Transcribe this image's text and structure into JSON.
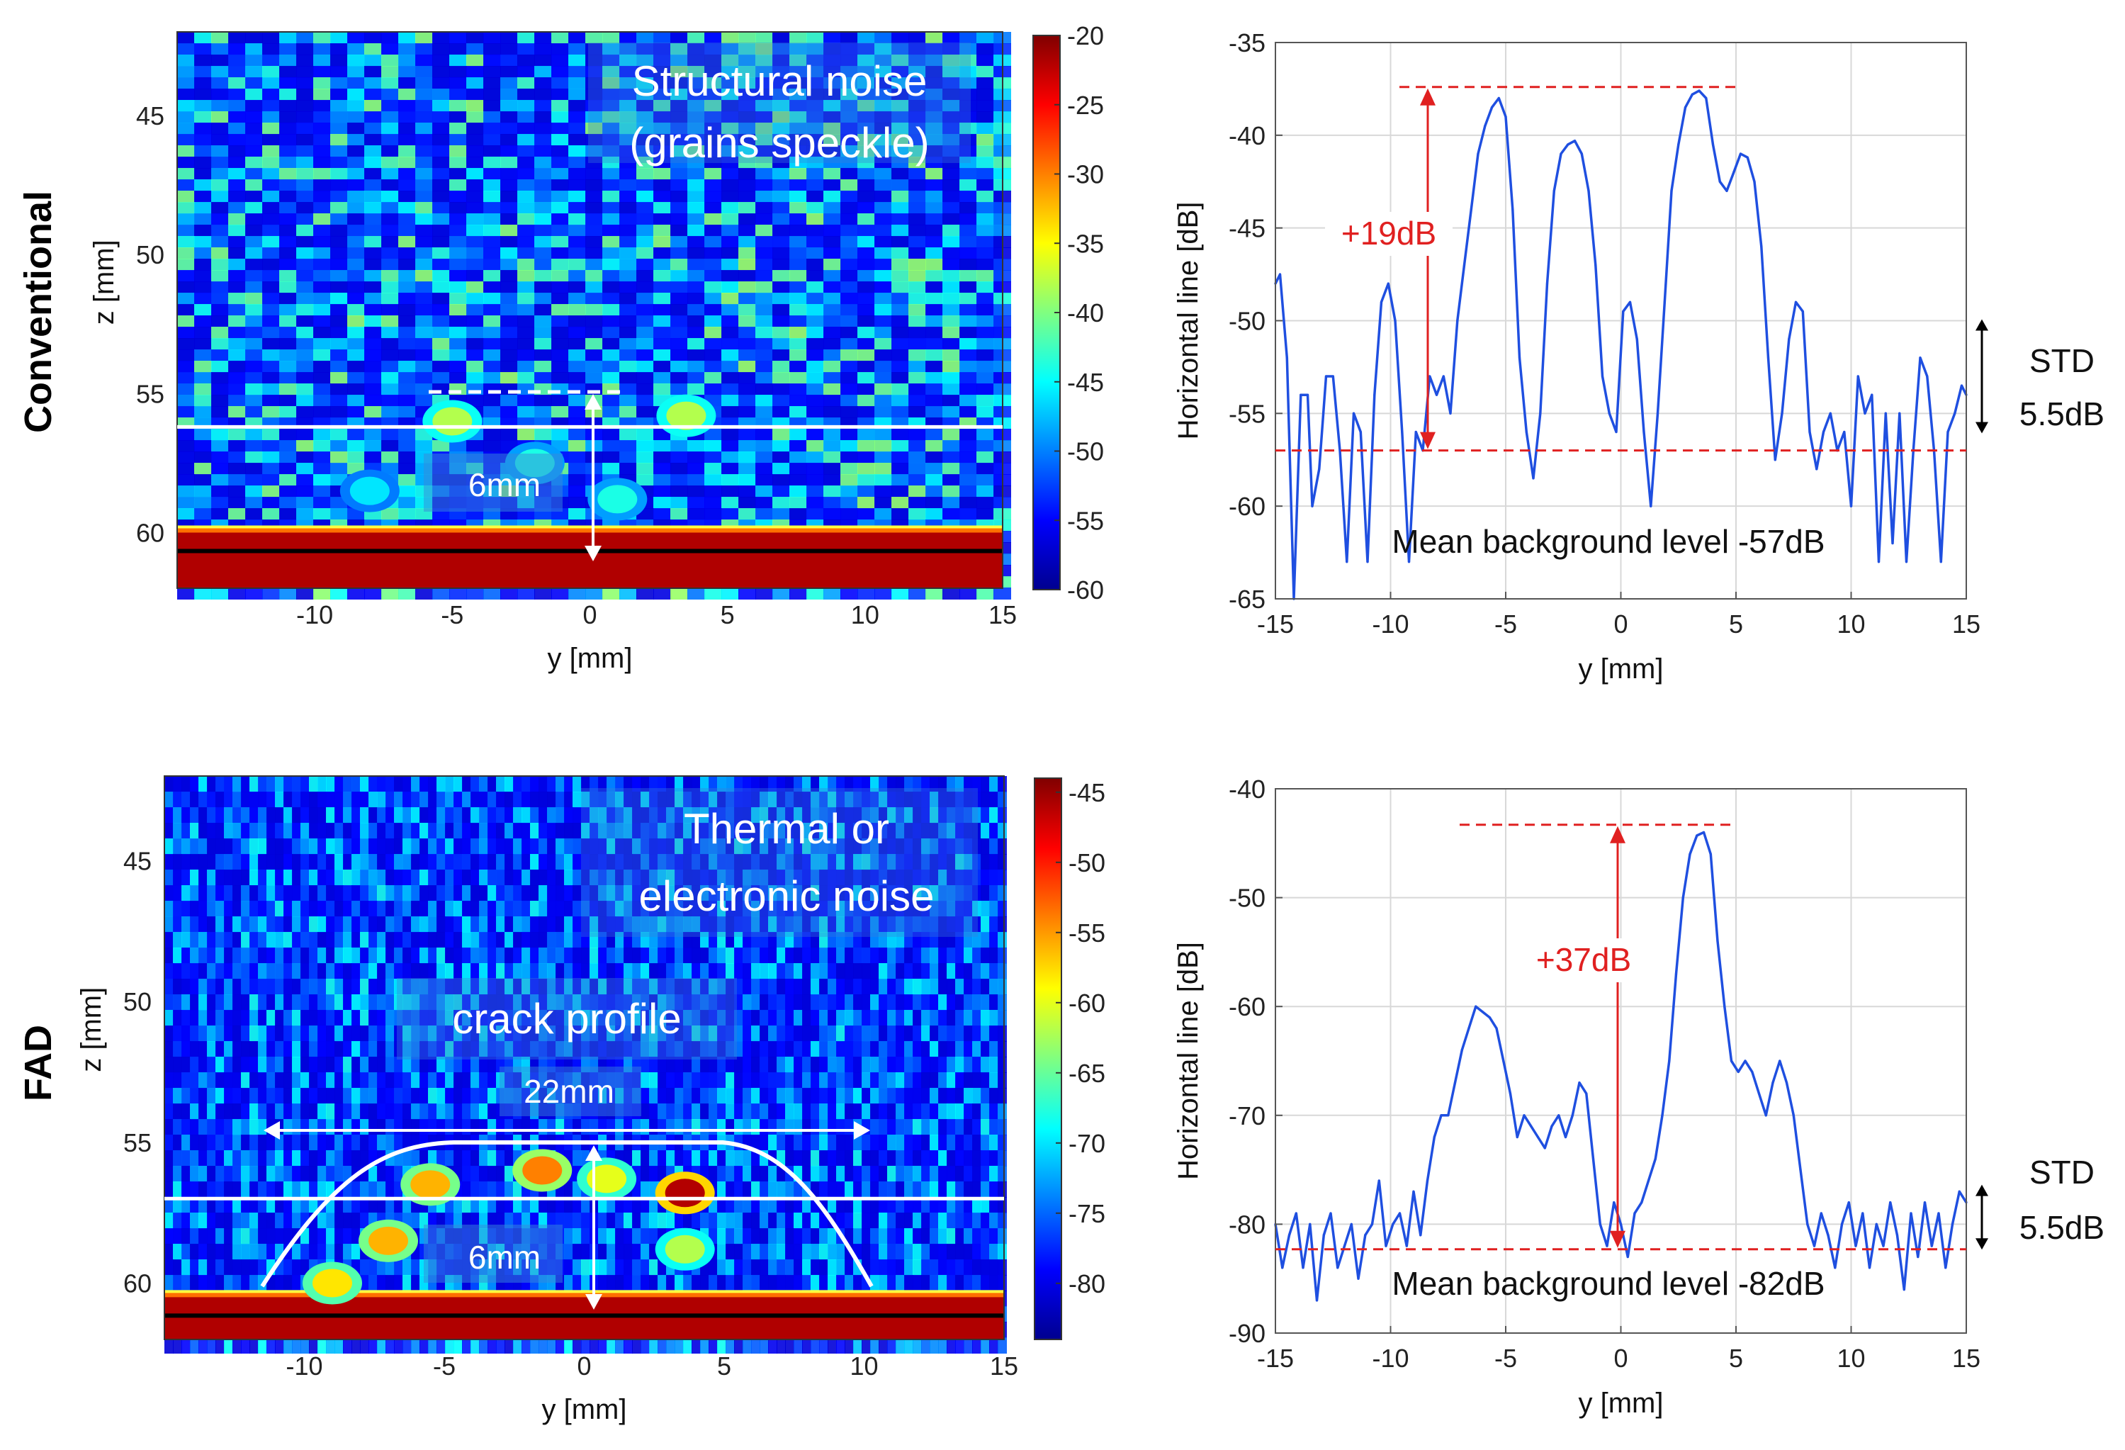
{
  "row_labels": {
    "top": "Conventional",
    "bottom": "FAD"
  },
  "chart_data": [
    {
      "type": "heatmap",
      "id": "conventional-image",
      "xlabel": "y [mm]",
      "ylabel": "z [mm]",
      "xlim": [
        -15,
        15
      ],
      "ylim": [
        62,
        42
      ],
      "xticks": [
        -10,
        -5,
        0,
        5,
        10,
        15
      ],
      "yticks": [
        45,
        50,
        55,
        60
      ],
      "colorbar": {
        "min": -60,
        "max": -20,
        "ticks": [
          -20,
          -25,
          -30,
          -35,
          -40,
          -45,
          -50,
          -55,
          -60
        ]
      },
      "colormap": [
        "#00008f",
        "#0000ff",
        "#0080ff",
        "#00ffff",
        "#80ff80",
        "#ffff00",
        "#ff8000",
        "#ff0000",
        "#800000"
      ],
      "background_level": -52,
      "wall_z": 60,
      "annotations": {
        "noise_line1": "Structural noise",
        "noise_line2": "(grains speckle)",
        "depth": "6mm",
        "horizontal_line_z": 56.2
      },
      "blobs": [
        {
          "y": -5,
          "z": 56.0,
          "v": -38
        },
        {
          "y": 3.5,
          "z": 55.8,
          "v": -38
        },
        {
          "y": -2,
          "z": 57.5,
          "v": -44
        },
        {
          "y": -8,
          "z": 58.5,
          "v": -46
        },
        {
          "y": 1,
          "z": 58.8,
          "v": -44
        }
      ]
    },
    {
      "type": "line",
      "id": "conventional-profile",
      "xlabel": "y [mm]",
      "ylabel": "Horizontal line [dB]",
      "xlim": [
        -15,
        15
      ],
      "ylim": [
        -65,
        -35
      ],
      "xticks": [
        -15,
        -10,
        -5,
        0,
        5,
        10,
        15
      ],
      "yticks": [
        -35,
        -40,
        -45,
        -50,
        -55,
        -60,
        -65
      ],
      "grid": true,
      "series": [
        {
          "color": "#1f4fe0",
          "x": [
            -15,
            -14.8,
            -14.5,
            -14.2,
            -13.9,
            -13.6,
            -13.4,
            -13.1,
            -12.8,
            -12.5,
            -12.2,
            -11.9,
            -11.6,
            -11.3,
            -11,
            -10.7,
            -10.4,
            -10.1,
            -9.8,
            -9.5,
            -9.2,
            -8.9,
            -8.6,
            -8.3,
            -8,
            -7.7,
            -7.4,
            -7.1,
            -6.8,
            -6.5,
            -6.2,
            -5.9,
            -5.6,
            -5.3,
            -5,
            -4.7,
            -4.4,
            -4.1,
            -3.8,
            -3.5,
            -3.2,
            -2.9,
            -2.6,
            -2.3,
            -2,
            -1.7,
            -1.4,
            -1.1,
            -0.8,
            -0.5,
            -0.2,
            0.1,
            0.4,
            0.7,
            1,
            1.3,
            1.6,
            1.9,
            2.2,
            2.5,
            2.8,
            3.1,
            3.4,
            3.7,
            4,
            4.3,
            4.6,
            4.9,
            5.2,
            5.5,
            5.8,
            6.1,
            6.4,
            6.7,
            7,
            7.3,
            7.6,
            7.9,
            8.2,
            8.5,
            8.8,
            9.1,
            9.4,
            9.7,
            10,
            10.3,
            10.6,
            10.9,
            11.2,
            11.5,
            11.8,
            12.1,
            12.4,
            12.7,
            13,
            13.3,
            13.6,
            13.9,
            14.2,
            14.5,
            14.8,
            15
          ],
          "y": [
            -48,
            -47.5,
            -52,
            -65,
            -54,
            -54,
            -60,
            -58,
            -53,
            -53,
            -57,
            -63,
            -55,
            -56,
            -63,
            -54,
            -49,
            -48,
            -50,
            -56,
            -63,
            -56,
            -57,
            -53,
            -54,
            -53,
            -55,
            -50,
            -47,
            -44,
            -41,
            -39.5,
            -38.5,
            -38,
            -39,
            -44,
            -52,
            -56,
            -58.5,
            -55,
            -48,
            -43,
            -41,
            -40.5,
            -40.3,
            -41,
            -43,
            -47,
            -53,
            -55,
            -56,
            -49.5,
            -49,
            -51,
            -56,
            -60,
            -55,
            -49,
            -43,
            -40.5,
            -38.5,
            -37.8,
            -37.6,
            -38,
            -40.5,
            -42.5,
            -43,
            -42,
            -41,
            -41.2,
            -42.5,
            -46,
            -52,
            -57.5,
            -55,
            -51,
            -49,
            -49.5,
            -56,
            -58,
            -56,
            -55,
            -57,
            -56,
            -60,
            -53,
            -55,
            -54,
            -63,
            -55,
            -62,
            -55,
            -63,
            -57,
            -52,
            -53,
            -57,
            -63,
            -56,
            -55,
            -53.5,
            -54
          ]
        }
      ],
      "annotations": {
        "gain": "+19dB",
        "peak_level": -37.4,
        "mean_level": -57,
        "mean_label": "Mean background level -57dB",
        "std_label1": "STD",
        "std_label2": "5.5dB",
        "std_range": [
          -50,
          -56
        ]
      }
    },
    {
      "type": "heatmap",
      "id": "fad-image",
      "xlabel": "y [mm]",
      "ylabel": "z [mm]",
      "xlim": [
        -15,
        15
      ],
      "ylim": [
        62,
        42
      ],
      "xticks": [
        -10,
        -5,
        0,
        5,
        10,
        15
      ],
      "yticks": [
        45,
        50,
        55,
        60
      ],
      "colorbar": {
        "min": -84,
        "max": -44,
        "ticks": [
          -45,
          -50,
          -55,
          -60,
          -65,
          -70,
          -75,
          -80
        ]
      },
      "colormap": [
        "#00008f",
        "#0000ff",
        "#0080ff",
        "#00ffff",
        "#80ff80",
        "#ffff00",
        "#ff8000",
        "#ff0000",
        "#800000"
      ],
      "background_level": -78,
      "wall_z": 60.5,
      "annotations": {
        "noise_line1": "Thermal or",
        "noise_line2": "electronic noise",
        "crack": "crack profile",
        "width": "22mm",
        "depth": "6mm",
        "horizontal_line_z": 57
      },
      "blobs": [
        {
          "y": 3.6,
          "z": 56.8,
          "v": -46
        },
        {
          "y": -1.5,
          "z": 56.0,
          "v": -54
        },
        {
          "y": -5.5,
          "z": 56.5,
          "v": -56
        },
        {
          "y": -7,
          "z": 58.5,
          "v": -56
        },
        {
          "y": -9,
          "z": 60.0,
          "v": -58
        },
        {
          "y": 3.6,
          "z": 58.8,
          "v": -62
        },
        {
          "y": 0.8,
          "z": 56.3,
          "v": -60
        }
      ]
    },
    {
      "type": "line",
      "id": "fad-profile",
      "xlabel": "y [mm]",
      "ylabel": "Horizontal line [dB]",
      "xlim": [
        -15,
        15
      ],
      "ylim": [
        -90,
        -40
      ],
      "xticks": [
        -15,
        -10,
        -5,
        0,
        5,
        10,
        15
      ],
      "yticks": [
        -40,
        -50,
        -60,
        -70,
        -80,
        -90
      ],
      "grid": true,
      "series": [
        {
          "color": "#1f4fe0",
          "x": [
            -15,
            -14.7,
            -14.4,
            -14.1,
            -13.8,
            -13.5,
            -13.2,
            -12.9,
            -12.6,
            -12.3,
            -12,
            -11.7,
            -11.4,
            -11.1,
            -10.8,
            -10.5,
            -10.2,
            -9.9,
            -9.6,
            -9.3,
            -9,
            -8.7,
            -8.4,
            -8.1,
            -7.8,
            -7.5,
            -7.2,
            -6.9,
            -6.6,
            -6.3,
            -6,
            -5.7,
            -5.4,
            -5.1,
            -4.8,
            -4.5,
            -4.2,
            -3.9,
            -3.6,
            -3.3,
            -3,
            -2.7,
            -2.4,
            -2.1,
            -1.8,
            -1.5,
            -1.2,
            -0.9,
            -0.6,
            -0.3,
            0,
            0.3,
            0.6,
            0.9,
            1.2,
            1.5,
            1.8,
            2.1,
            2.4,
            2.7,
            3,
            3.3,
            3.6,
            3.9,
            4.2,
            4.5,
            4.8,
            5.1,
            5.4,
            5.7,
            6,
            6.3,
            6.6,
            6.9,
            7.2,
            7.5,
            7.8,
            8.1,
            8.4,
            8.7,
            9,
            9.3,
            9.6,
            9.9,
            10.2,
            10.5,
            10.8,
            11.1,
            11.4,
            11.7,
            12,
            12.3,
            12.6,
            12.9,
            13.2,
            13.5,
            13.8,
            14.1,
            14.4,
            14.7,
            15
          ],
          "y": [
            -80,
            -84,
            -81,
            -79,
            -84,
            -80,
            -87,
            -81,
            -79,
            -84,
            -82,
            -80,
            -85,
            -81,
            -80,
            -76,
            -82,
            -80,
            -79,
            -82,
            -77,
            -81,
            -76,
            -72,
            -70,
            -70,
            -67,
            -64,
            -62,
            -60,
            -60.5,
            -61,
            -62,
            -65,
            -68,
            -72,
            -70,
            -71,
            -72,
            -73,
            -71,
            -70,
            -72,
            -70,
            -67,
            -68,
            -74,
            -80,
            -82,
            -78,
            -80,
            -83,
            -79,
            -78,
            -76,
            -74,
            -70,
            -65,
            -57,
            -50,
            -46,
            -44.3,
            -44,
            -46,
            -54,
            -60,
            -65,
            -66,
            -65,
            -66,
            -68,
            -70,
            -67,
            -65,
            -67,
            -70,
            -75,
            -80,
            -82,
            -79,
            -81,
            -84,
            -80,
            -78,
            -82,
            -79,
            -84,
            -80,
            -82,
            -78,
            -81,
            -86,
            -79,
            -83,
            -78,
            -82,
            -79,
            -84,
            -80,
            -77,
            -78
          ]
        }
      ],
      "annotations": {
        "gain": "+37dB",
        "peak_level": -43.3,
        "mean_level": -82.3,
        "mean_label": "Mean background level -82dB",
        "std_label1": "STD",
        "std_label2": "5.5dB",
        "std_range": [
          -76.5,
          -82.2
        ]
      }
    }
  ]
}
